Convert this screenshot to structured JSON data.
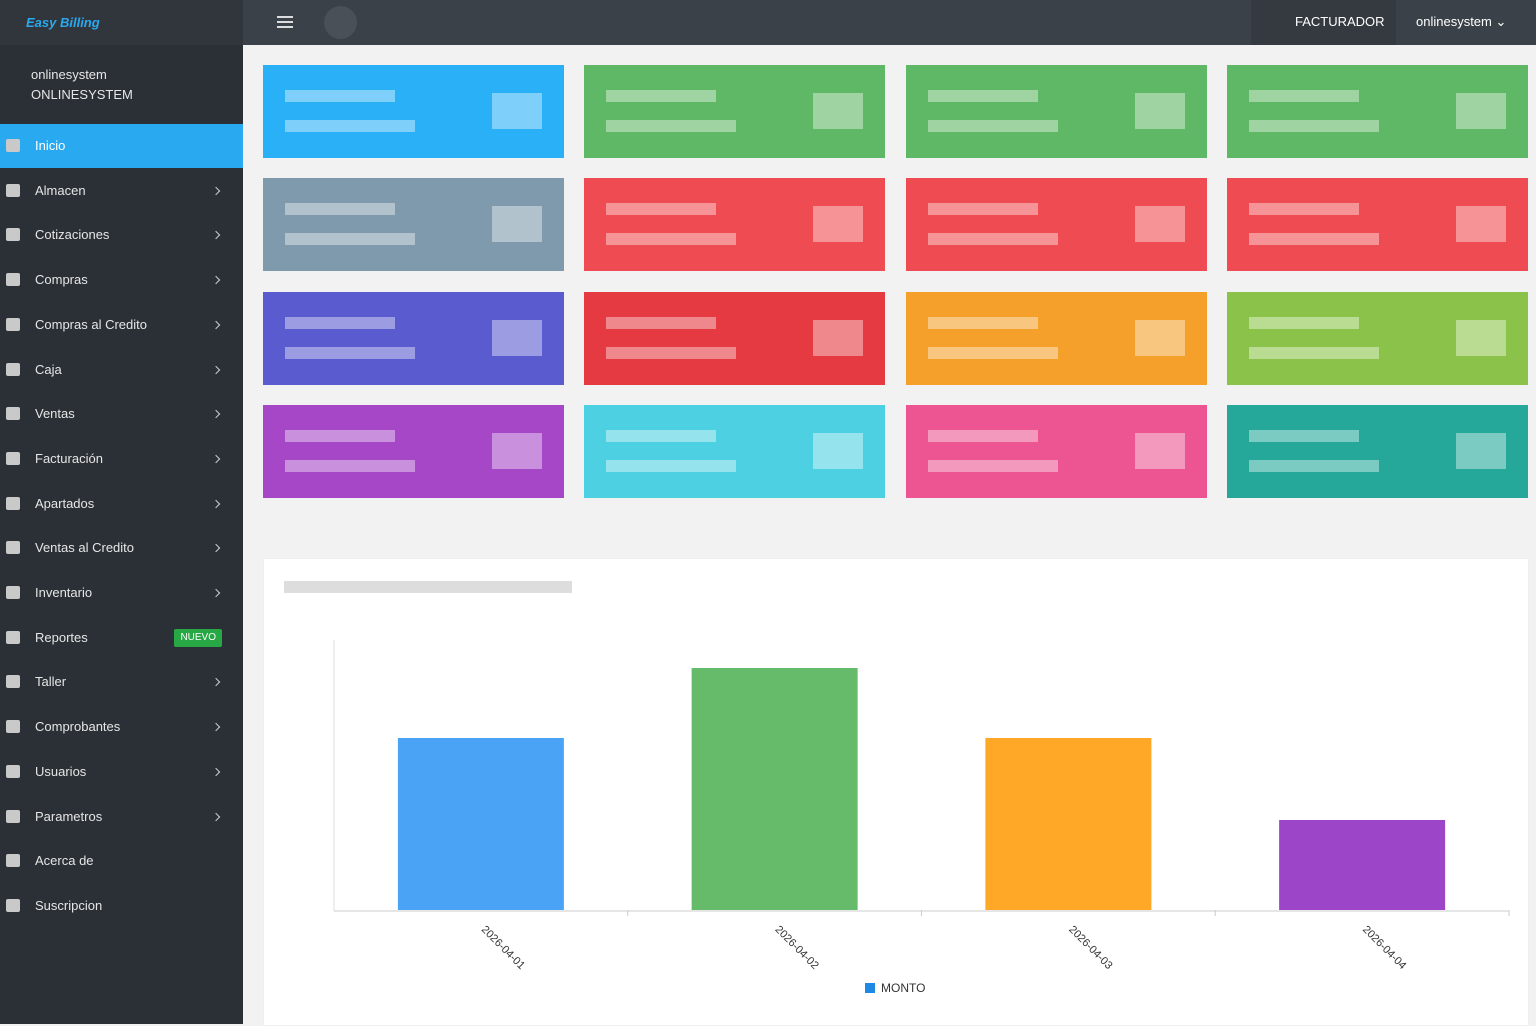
{
  "header": {
    "brand": "Easy Billing",
    "company": "FACTURADOR",
    "user": "onlinesystem"
  },
  "sidebar": {
    "user_name": "onlinesystem",
    "user_company": "ONLINESYSTEM",
    "menu": [
      {
        "label": "Inicio"
      },
      {
        "label": "Almacen"
      },
      {
        "label": "Cotizaciones"
      },
      {
        "label": "Compras"
      },
      {
        "label": "Compras al Credito"
      },
      {
        "label": "Caja"
      },
      {
        "label": "Ventas"
      },
      {
        "label": "Facturación"
      },
      {
        "label": "Apartados"
      },
      {
        "label": "Ventas al Credito"
      },
      {
        "label": "Inventario"
      },
      {
        "label": "Reportes",
        "badge": "NUEVO"
      },
      {
        "label": "Taller"
      },
      {
        "label": "Comprobantes"
      },
      {
        "label": "Usuarios"
      },
      {
        "label": "Parametros"
      },
      {
        "label": "Acerca de"
      },
      {
        "label": "Suscripcion"
      }
    ]
  },
  "chart_data": {
    "type": "bar",
    "categories": [
      "2026-04-01",
      "2026-04-02",
      "2026-04-03",
      "2026-04-04"
    ],
    "series": [
      {
        "name": "MONTO",
        "color": "#1e88e5",
        "values": [
          172,
          242,
          172,
          90
        ]
      }
    ],
    "bar_colors": [
      "#4aa3f5",
      "#66bb6a",
      "#ffa726",
      "#9c45c8"
    ],
    "ylim": [
      0,
      270
    ]
  }
}
